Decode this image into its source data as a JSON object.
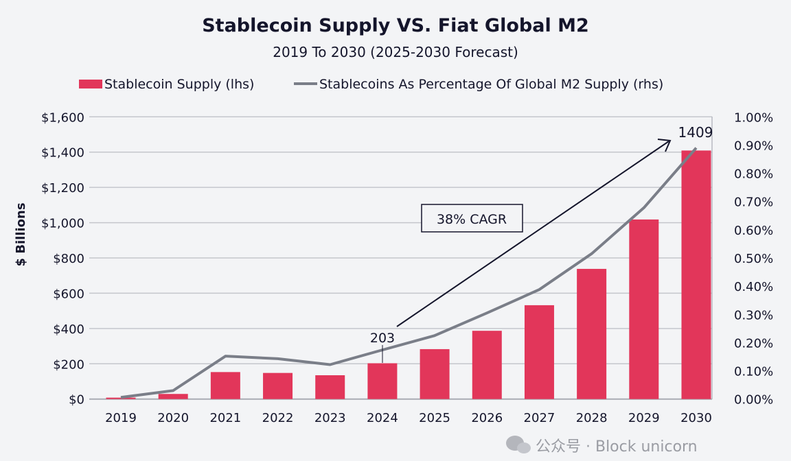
{
  "chart_data": {
    "type": "bar+line",
    "title": "Stablecoin Supply VS. Fiat Global M2",
    "subtitle": "2019 To 2030 (2025-2030 Forecast)",
    "ylabel": "$ Billions",
    "categories": [
      "2019",
      "2020",
      "2021",
      "2022",
      "2023",
      "2024",
      "2025",
      "2026",
      "2027",
      "2028",
      "2029",
      "2030"
    ],
    "series": [
      {
        "name": "Stablecoin Supply (lhs)",
        "type": "bar",
        "axis": "left",
        "color": "#e2365a",
        "values": [
          8,
          29,
          153,
          148,
          135,
          203,
          283,
          387,
          532,
          738,
          1018,
          1409
        ]
      },
      {
        "name": "Stablecoins As Percentage Of Global M2 Supply (rhs)",
        "type": "line",
        "axis": "right",
        "color": "#7a7e88",
        "values": [
          0.006,
          0.03,
          0.152,
          0.143,
          0.122,
          0.174,
          0.225,
          0.305,
          0.388,
          0.515,
          0.678,
          0.89
        ]
      }
    ],
    "left_axis": {
      "range": [
        0,
        1600
      ],
      "ticks": [
        "$0",
        "$200",
        "$400",
        "$600",
        "$800",
        "$1,000",
        "$1,200",
        "$1,400",
        "$1,600"
      ]
    },
    "right_axis": {
      "range": [
        0,
        1.0
      ],
      "ticks": [
        "0.00%",
        "0.10%",
        "0.20%",
        "0.30%",
        "0.40%",
        "0.50%",
        "0.60%",
        "0.70%",
        "0.80%",
        "0.90%",
        "1.00%"
      ]
    },
    "grid": true,
    "legend": "top",
    "annotations": {
      "start_label": "203",
      "end_label": "1409",
      "cagr": "38% CAGR"
    }
  },
  "watermark": "公众号 · Block unicorn"
}
